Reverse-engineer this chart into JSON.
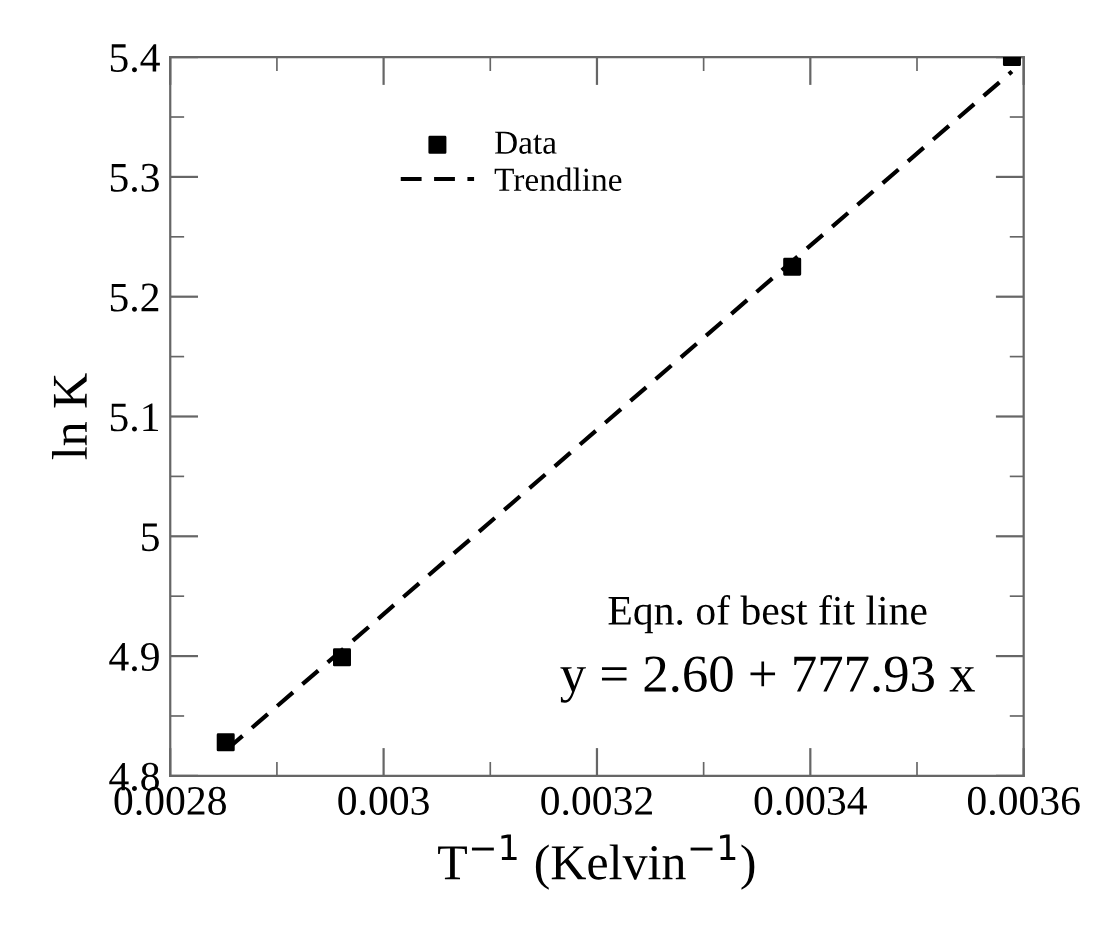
{
  "chart_data": {
    "type": "scatter",
    "xlabel": "T$^{−1}$ (Kelvin$^{−1}$)",
    "ylabel": "ln K",
    "series": [
      {
        "name": "Data",
        "color": "#000000",
        "marker": "square",
        "x": [
          0.002852,
          0.002961,
          0.003383,
          0.003589
        ],
        "values": [
          4.828,
          4.899,
          5.225,
          5.4
        ]
      },
      {
        "name": "Trendline",
        "type": "line",
        "color": "#000000",
        "line_style": "dashed",
        "marker": "none",
        "x": [
          0.002853,
          0.003589
        ],
        "values": [
          4.822,
          5.388
        ]
      }
    ],
    "xlim": [
      0.0028,
      0.0036
    ],
    "xticks": [
      0.0028,
      0.003,
      0.0032,
      0.0034,
      0.0036
    ],
    "ylim": [
      4.8,
      5.4
    ],
    "yticks": [
      4.8,
      4.9,
      5,
      5.1,
      5.2,
      5.3,
      5.4
    ],
    "annotations": [
      "Eqn. of best fit line",
      "y = 2.60 + 777.93 x"
    ],
    "legend": "top",
    "grid": false
  }
}
